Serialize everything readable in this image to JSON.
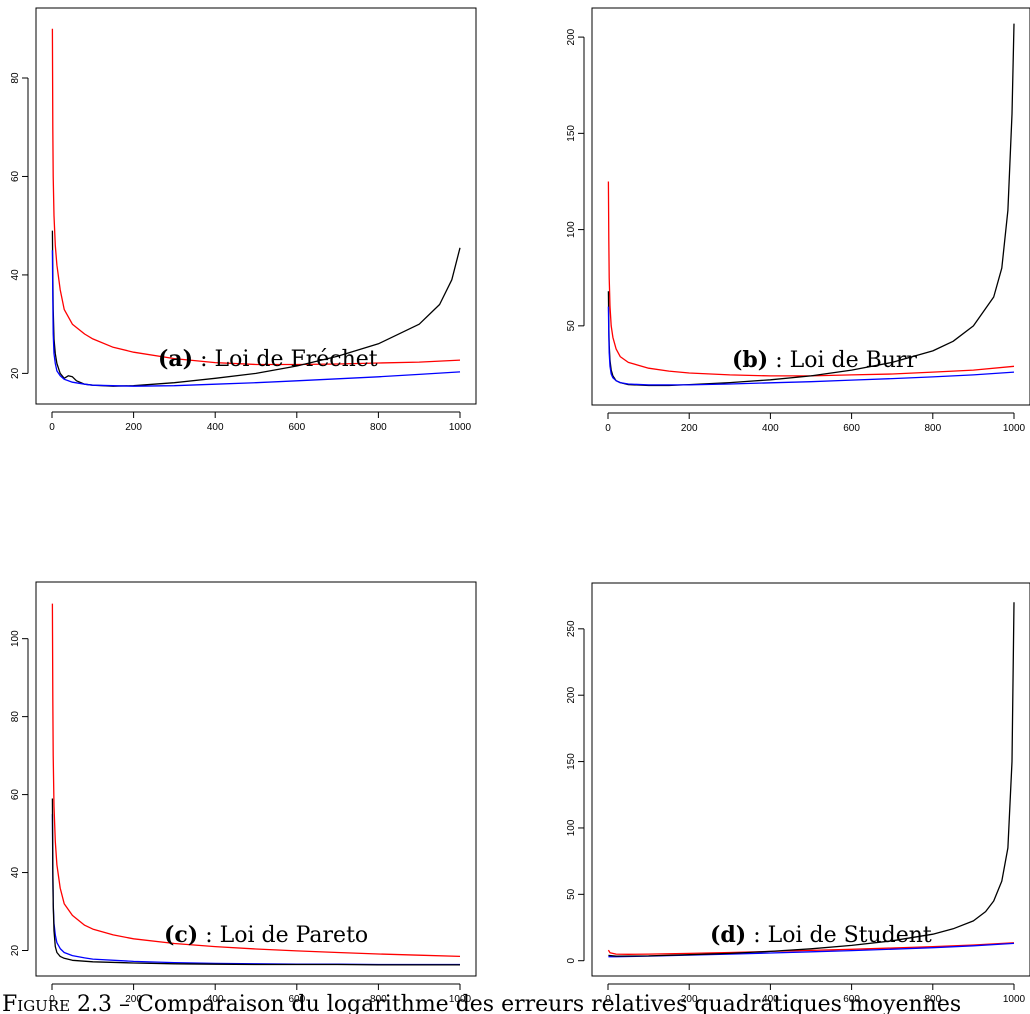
{
  "chart_data": [
    {
      "type": "line",
      "panel": "a",
      "label_letter": "(a)",
      "label_text": " : Loi de Fréchet",
      "xlim": [
        0,
        1000
      ],
      "ylim": [
        15,
        93
      ],
      "xticks": [
        0,
        200,
        400,
        600,
        800,
        1000
      ],
      "yticks": [
        20,
        40,
        60,
        80
      ],
      "series": [
        {
          "color": "#ff0000",
          "points": [
            [
              1,
              90
            ],
            [
              2,
              70
            ],
            [
              3,
              60
            ],
            [
              5,
              52
            ],
            [
              8,
              46
            ],
            [
              12,
              42
            ],
            [
              20,
              37
            ],
            [
              30,
              33
            ],
            [
              50,
              30
            ],
            [
              80,
              28
            ],
            [
              100,
              27
            ],
            [
              150,
              25.3
            ],
            [
              200,
              24.3
            ],
            [
              300,
              23
            ],
            [
              400,
              22.2
            ],
            [
              500,
              21.8
            ],
            [
              600,
              21.8
            ],
            [
              700,
              21.9
            ],
            [
              800,
              22.1
            ],
            [
              900,
              22.3
            ],
            [
              1000,
              22.7
            ]
          ]
        },
        {
          "color": "#000000",
          "points": [
            [
              1,
              49
            ],
            [
              2,
              40
            ],
            [
              3,
              33
            ],
            [
              5,
              27
            ],
            [
              8,
              24
            ],
            [
              12,
              22
            ],
            [
              20,
              20
            ],
            [
              30,
              19
            ],
            [
              40,
              19.5
            ],
            [
              50,
              19.3
            ],
            [
              60,
              18.5
            ],
            [
              80,
              17.8
            ],
            [
              100,
              17.6
            ],
            [
              150,
              17.4
            ],
            [
              200,
              17.5
            ],
            [
              300,
              18.1
            ],
            [
              400,
              19
            ],
            [
              500,
              20
            ],
            [
              600,
              21.5
            ],
            [
              700,
              23.5
            ],
            [
              800,
              26
            ],
            [
              900,
              30
            ],
            [
              950,
              34
            ],
            [
              980,
              39
            ],
            [
              1000,
              45.5
            ]
          ]
        },
        {
          "color": "#0000ff",
          "points": [
            [
              1,
              45
            ],
            [
              2,
              35
            ],
            [
              3,
              28
            ],
            [
              5,
              24
            ],
            [
              8,
              22
            ],
            [
              12,
              20.5
            ],
            [
              20,
              19.5
            ],
            [
              30,
              18.8
            ],
            [
              50,
              18.2
            ],
            [
              80,
              17.8
            ],
            [
              100,
              17.6
            ],
            [
              200,
              17.4
            ],
            [
              300,
              17.5
            ],
            [
              400,
              17.8
            ],
            [
              500,
              18.1
            ],
            [
              600,
              18.5
            ],
            [
              700,
              18.9
            ],
            [
              800,
              19.3
            ],
            [
              900,
              19.8
            ],
            [
              1000,
              20.3
            ]
          ]
        }
      ]
    },
    {
      "type": "line",
      "panel": "b",
      "label_letter": "(b)",
      "label_text": " : Loi de Burr",
      "xlim": [
        0,
        1000
      ],
      "ylim": [
        12,
        212
      ],
      "xticks": [
        0,
        200,
        400,
        600,
        800,
        1000
      ],
      "yticks": [
        50,
        100,
        150,
        200
      ],
      "series": [
        {
          "color": "#ff0000",
          "points": [
            [
              1,
              125
            ],
            [
              2,
              95
            ],
            [
              3,
              75
            ],
            [
              5,
              60
            ],
            [
              8,
              50
            ],
            [
              12,
              44
            ],
            [
              20,
              38
            ],
            [
              30,
              34
            ],
            [
              50,
              31
            ],
            [
              100,
              28
            ],
            [
              150,
              26.5
            ],
            [
              200,
              25.5
            ],
            [
              300,
              24.5
            ],
            [
              400,
              24
            ],
            [
              500,
              24
            ],
            [
              600,
              24.5
            ],
            [
              700,
              25
            ],
            [
              800,
              26
            ],
            [
              900,
              27
            ],
            [
              1000,
              29
            ]
          ]
        },
        {
          "color": "#000000",
          "points": [
            [
              1,
              68
            ],
            [
              2,
              50
            ],
            [
              3,
              40
            ],
            [
              5,
              32
            ],
            [
              8,
              27
            ],
            [
              12,
              24
            ],
            [
              20,
              21.5
            ],
            [
              30,
              20.5
            ],
            [
              50,
              19.5
            ],
            [
              100,
              19
            ],
            [
              150,
              19
            ],
            [
              200,
              19.5
            ],
            [
              300,
              20.5
            ],
            [
              400,
              22
            ],
            [
              500,
              24
            ],
            [
              600,
              27
            ],
            [
              700,
              31
            ],
            [
              800,
              37
            ],
            [
              850,
              42
            ],
            [
              900,
              50
            ],
            [
              950,
              65
            ],
            [
              970,
              80
            ],
            [
              985,
              110
            ],
            [
              995,
              160
            ],
            [
              1000,
              207
            ]
          ]
        },
        {
          "color": "#0000ff",
          "points": [
            [
              1,
              60
            ],
            [
              2,
              45
            ],
            [
              3,
              36
            ],
            [
              5,
              29
            ],
            [
              8,
              25
            ],
            [
              12,
              23
            ],
            [
              20,
              21.5
            ],
            [
              30,
              20.5
            ],
            [
              50,
              19.8
            ],
            [
              100,
              19.3
            ],
            [
              200,
              19.3
            ],
            [
              300,
              19.8
            ],
            [
              400,
              20.4
            ],
            [
              500,
              21
            ],
            [
              600,
              21.8
            ],
            [
              700,
              22.6
            ],
            [
              800,
              23.5
            ],
            [
              900,
              24.5
            ],
            [
              1000,
              26
            ]
          ]
        }
      ]
    },
    {
      "type": "line",
      "panel": "c",
      "label_letter": "(c)",
      "label_text": " : Loi de Pareto",
      "xlim": [
        0,
        1000
      ],
      "ylim": [
        15,
        113
      ],
      "xticks": [
        0,
        200,
        400,
        600,
        800,
        1000
      ],
      "yticks": [
        20,
        40,
        60,
        80,
        100
      ],
      "series": [
        {
          "color": "#ff0000",
          "points": [
            [
              1,
              109
            ],
            [
              2,
              85
            ],
            [
              3,
              70
            ],
            [
              5,
              57
            ],
            [
              8,
              48
            ],
            [
              12,
              42
            ],
            [
              20,
              36
            ],
            [
              30,
              32
            ],
            [
              50,
              29
            ],
            [
              80,
              26.5
            ],
            [
              100,
              25.5
            ],
            [
              150,
              24
            ],
            [
              200,
              23
            ],
            [
              300,
              21.8
            ],
            [
              400,
              21
            ],
            [
              500,
              20.4
            ],
            [
              600,
              19.9
            ],
            [
              700,
              19.5
            ],
            [
              800,
              19.1
            ],
            [
              900,
              18.8
            ],
            [
              1000,
              18.5
            ]
          ]
        },
        {
          "color": "#0000ff",
          "points": [
            [
              1,
              55
            ],
            [
              2,
              40
            ],
            [
              3,
              32
            ],
            [
              5,
              27
            ],
            [
              8,
              24
            ],
            [
              12,
              22
            ],
            [
              20,
              20.5
            ],
            [
              30,
              19.5
            ],
            [
              50,
              18.7
            ],
            [
              80,
              18.1
            ],
            [
              100,
              17.8
            ],
            [
              200,
              17.2
            ],
            [
              300,
              16.9
            ],
            [
              400,
              16.7
            ],
            [
              500,
              16.6
            ],
            [
              600,
              16.5
            ],
            [
              700,
              16.5
            ],
            [
              800,
              16.4
            ],
            [
              900,
              16.4
            ],
            [
              1000,
              16.4
            ]
          ]
        },
        {
          "color": "#000000",
          "points": [
            [
              1,
              59
            ],
            [
              2,
              42
            ],
            [
              3,
              32
            ],
            [
              5,
              25
            ],
            [
              8,
              21
            ],
            [
              12,
              19.5
            ],
            [
              20,
              18.5
            ],
            [
              30,
              18
            ],
            [
              50,
              17.5
            ],
            [
              100,
              17.1
            ],
            [
              200,
              16.8
            ],
            [
              300,
              16.6
            ],
            [
              400,
              16.5
            ],
            [
              500,
              16.4
            ],
            [
              600,
              16.4
            ],
            [
              700,
              16.4
            ],
            [
              800,
              16.3
            ],
            [
              900,
              16.3
            ],
            [
              1000,
              16.3
            ]
          ]
        }
      ]
    },
    {
      "type": "line",
      "panel": "d",
      "label_letter": "(d)",
      "label_text": " : Loi de Student",
      "xlim": [
        0,
        1000
      ],
      "ylim": [
        -7,
        280
      ],
      "xticks": [
        0,
        200,
        400,
        600,
        800,
        1000
      ],
      "yticks": [
        0,
        50,
        100,
        150,
        200,
        250
      ],
      "series": [
        {
          "color": "#ff0000",
          "points": [
            [
              1,
              8
            ],
            [
              5,
              6
            ],
            [
              20,
              5
            ],
            [
              50,
              4.8
            ],
            [
              100,
              5
            ],
            [
              200,
              5.5
            ],
            [
              300,
              6.2
            ],
            [
              400,
              7
            ],
            [
              500,
              7.8
            ],
            [
              600,
              8.6
            ],
            [
              700,
              9.6
            ],
            [
              800,
              10.6
            ],
            [
              900,
              11.8
            ],
            [
              1000,
              13.5
            ]
          ]
        },
        {
          "color": "#0000ff",
          "points": [
            [
              1,
              3
            ],
            [
              20,
              3
            ],
            [
              100,
              3.5
            ],
            [
              200,
              4.2
            ],
            [
              300,
              5
            ],
            [
              400,
              5.8
            ],
            [
              500,
              6.7
            ],
            [
              600,
              7.6
            ],
            [
              700,
              8.7
            ],
            [
              800,
              9.8
            ],
            [
              900,
              11.2
            ],
            [
              1000,
              13
            ]
          ]
        },
        {
          "color": "#000000",
          "points": [
            [
              1,
              4
            ],
            [
              20,
              3.5
            ],
            [
              100,
              3.6
            ],
            [
              200,
              4.5
            ],
            [
              300,
              5.5
            ],
            [
              400,
              7
            ],
            [
              500,
              9
            ],
            [
              600,
              11.5
            ],
            [
              700,
              15
            ],
            [
              800,
              20
            ],
            [
              850,
              24
            ],
            [
              900,
              30
            ],
            [
              930,
              37
            ],
            [
              950,
              45
            ],
            [
              970,
              60
            ],
            [
              985,
              85
            ],
            [
              995,
              150
            ],
            [
              1000,
              270
            ]
          ]
        }
      ]
    }
  ],
  "caption": {
    "prefix": "F",
    "smallcaps": "IGURE",
    "rest": " 2.3 – Comparaison du logarithme des erreurs relatives quadratiques moyennes"
  }
}
